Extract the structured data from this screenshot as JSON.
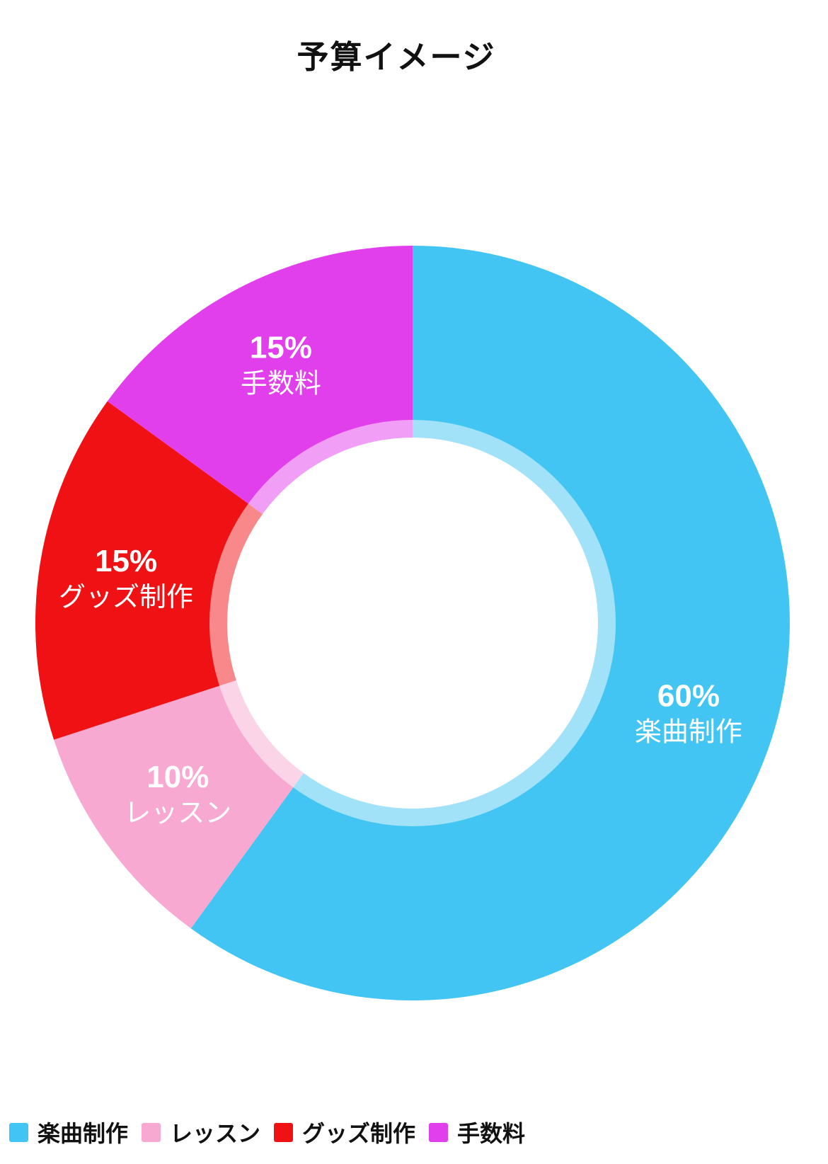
{
  "page": {
    "background_color": "#ffffff"
  },
  "chart_data": {
    "type": "pie",
    "subtype": "donut",
    "title": "予算イメージ",
    "unit": "%",
    "start_angle_deg": 0,
    "direction": "clockwise",
    "hole": true,
    "inner_highlight_ring": true,
    "label_text_color": "#ffffff",
    "legend_position": "bottom-left",
    "segments": [
      {
        "label": "楽曲制作",
        "value": 60,
        "data_label": "60%",
        "color": "#43C5F3"
      },
      {
        "label": "レッスン",
        "value": 10,
        "data_label": "10%",
        "color": "#F8A9D1"
      },
      {
        "label": "グッズ制作",
        "value": 15,
        "data_label": "15%",
        "color": "#F01114"
      },
      {
        "label": "手数料",
        "value": 15,
        "data_label": "15%",
        "color": "#E23FEC"
      }
    ],
    "legend": [
      "楽曲制作",
      "レッスン",
      "グッズ制作",
      "手数料"
    ]
  }
}
